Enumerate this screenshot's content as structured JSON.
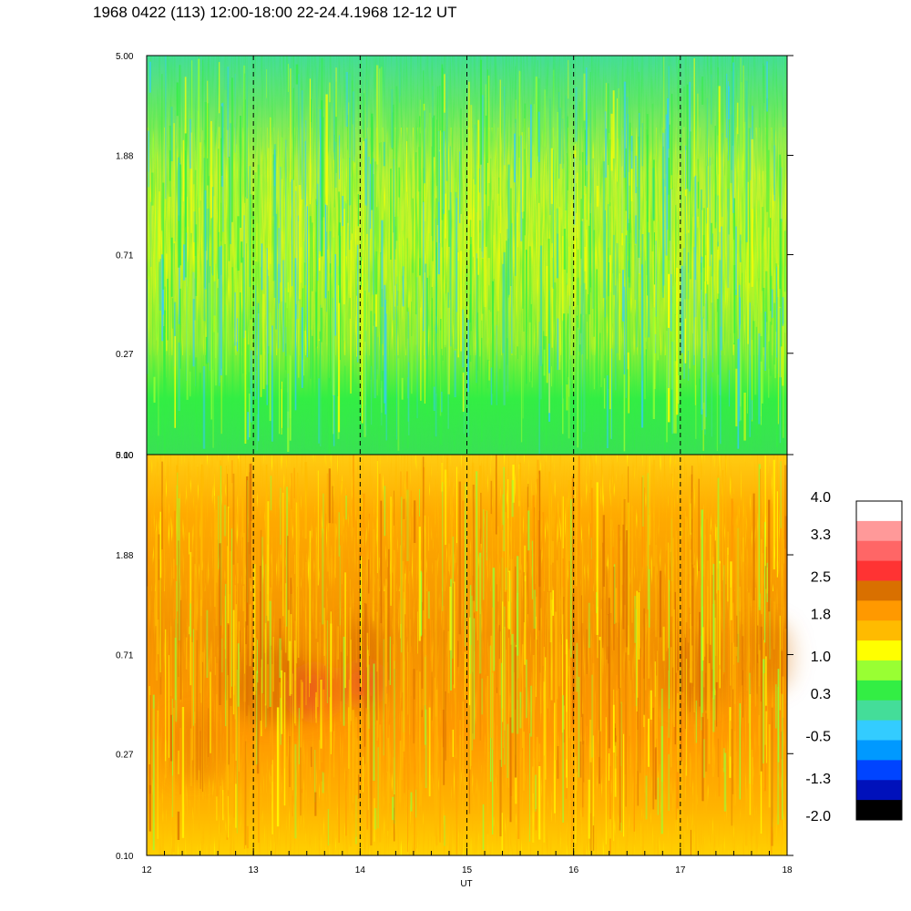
{
  "title": "1968 0422 (113) 12:00-18:00 22-24.4.1968  12-12 UT",
  "chart_data": {
    "type": "heatmap",
    "xlabel": "UT",
    "x_ticks": [
      "12",
      "13",
      "14",
      "15",
      "16",
      "17",
      "18"
    ],
    "xlim": [
      12,
      18
    ],
    "y_ticks": [
      "0.10",
      "0.27",
      "0.71",
      "1.88",
      "5.00"
    ],
    "ylim": [
      0.1,
      5.0
    ],
    "y_scale": "log",
    "dashed_reference_lines_x": [
      13,
      14,
      15,
      16,
      17
    ],
    "panels": [
      {
        "name": "upper",
        "dominant_values": "green to yellow (about 0.3 to 1.0)",
        "base_level": 0.55
      },
      {
        "name": "lower",
        "dominant_values": "orange (about 1.8 to 2.5), with dark-orange/red patches near 13.2-13.6, 14.0 and 17.0 UT around 0.5-0.7",
        "base_level": 1.9
      }
    ],
    "colorbar": {
      "labels": [
        "4.0",
        "3.3",
        "2.5",
        "1.8",
        "1.0",
        "0.3",
        "-0.5",
        "-1.3",
        "-2.0"
      ],
      "colors_top_to_bottom": [
        "#ffffff",
        "#ff9999",
        "#ff6666",
        "#ff3333",
        "#d97000",
        "#ff9900",
        "#ffbb00",
        "#ffff00",
        "#99ff33",
        "#33ee44",
        "#44dd99",
        "#33ccff",
        "#0099ff",
        "#0044ff",
        "#0011bb",
        "#000000"
      ],
      "min": -2.0,
      "max": 4.0
    }
  }
}
